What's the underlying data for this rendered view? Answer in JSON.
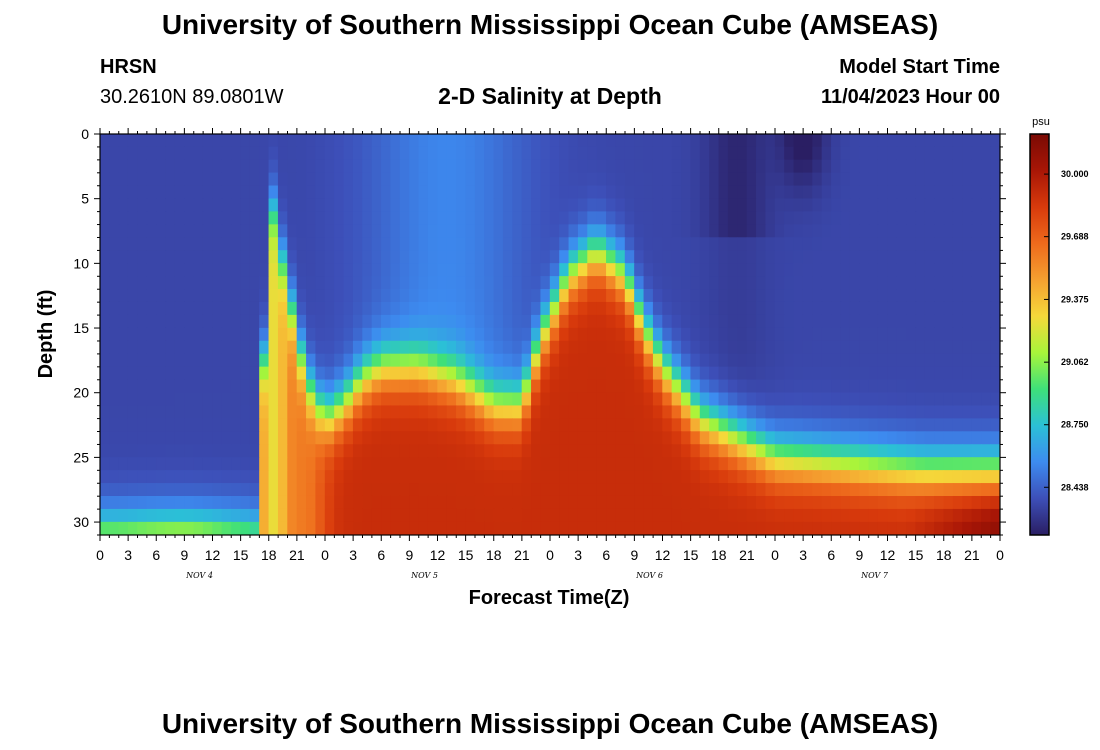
{
  "page": {
    "title": "University of Southern Mississippi Ocean Cube (AMSEAS)",
    "title_repeat": "University of Southern Mississippi Ocean Cube (AMSEAS)",
    "station": "HRSN",
    "coordinates": "30.2610N  89.0801W",
    "subtitle": "2-D Salinity at Depth",
    "model_start_label": "Model Start Time",
    "model_start_value": "11/04/2023 Hour 00"
  },
  "chart_data": {
    "type": "heatmap",
    "title": "2-D Salinity at Depth",
    "xlabel": "Forecast Time(Z)",
    "ylabel": "Depth (ft)",
    "x_range_hours": [
      0,
      96
    ],
    "y_range_ft": [
      0,
      31
    ],
    "x_tick_labels": [
      "0",
      "3",
      "6",
      "9",
      "12",
      "15",
      "18",
      "21",
      "0",
      "3",
      "6",
      "9",
      "12",
      "15",
      "18",
      "21",
      "0",
      "3",
      "6",
      "9",
      "12",
      "15",
      "18",
      "21",
      "0",
      "3",
      "6",
      "9",
      "12",
      "15",
      "18",
      "21",
      "0"
    ],
    "day_labels": [
      {
        "label": "NOV 4",
        "hour": 12
      },
      {
        "label": "NOV 5",
        "hour": 36
      },
      {
        "label": "NOV 6",
        "hour": 60
      },
      {
        "label": "NOV 7",
        "hour": 84
      }
    ],
    "y_tick_labels": [
      "0",
      "5",
      "10",
      "15",
      "20",
      "25",
      "30"
    ],
    "y_tick_values": [
      0,
      5,
      10,
      15,
      20,
      25,
      30
    ],
    "colorbar": {
      "unit": "psu",
      "range": [
        28.2,
        30.2
      ],
      "tick_labels": [
        "30.000",
        "29.688",
        "29.375",
        "29.062",
        "28.750",
        "28.438"
      ],
      "tick_values": [
        30.0,
        29.688,
        29.375,
        29.062,
        28.75,
        28.438
      ],
      "colors": [
        "#2a1e63",
        "#3d4fb8",
        "#3d8bf0",
        "#2bc0d6",
        "#3ee07a",
        "#a8f53a",
        "#f5d83a",
        "#f5a030",
        "#ee6a1c",
        "#d83a0c",
        "#a81606",
        "#7a0a04"
      ]
    },
    "halocline_depth_ft": [
      {
        "hour": 0,
        "depth": 31
      },
      {
        "hour": 17,
        "depth": 31
      },
      {
        "hour": 18,
        "depth": 4
      },
      {
        "hour": 20,
        "depth": 12
      },
      {
        "hour": 22,
        "depth": 19
      },
      {
        "hour": 24,
        "depth": 22
      },
      {
        "hour": 26,
        "depth": 21
      },
      {
        "hour": 28,
        "depth": 19
      },
      {
        "hour": 30,
        "depth": 18
      },
      {
        "hour": 34,
        "depth": 18
      },
      {
        "hour": 38,
        "depth": 19
      },
      {
        "hour": 42,
        "depth": 21
      },
      {
        "hour": 45,
        "depth": 21
      },
      {
        "hour": 47,
        "depth": 16
      },
      {
        "hour": 50,
        "depth": 11
      },
      {
        "hour": 53,
        "depth": 9
      },
      {
        "hour": 56,
        "depth": 11
      },
      {
        "hour": 58,
        "depth": 15
      },
      {
        "hour": 60,
        "depth": 18
      },
      {
        "hour": 64,
        "depth": 22
      },
      {
        "hour": 72,
        "depth": 25
      },
      {
        "hour": 88,
        "depth": 26
      },
      {
        "hour": 96,
        "depth": 26
      }
    ]
  }
}
